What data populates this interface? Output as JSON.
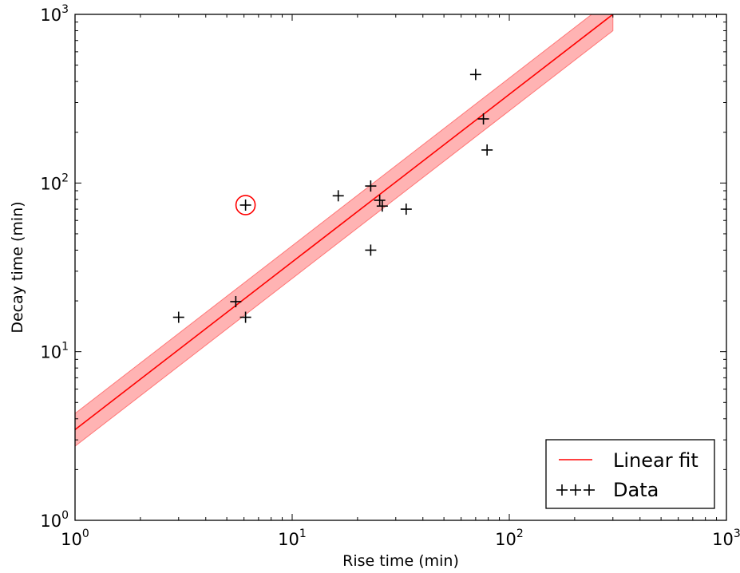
{
  "chart_data": {
    "type": "scatter",
    "title": "",
    "xlabel": "Rise time (min)",
    "ylabel": "Decay time (min)",
    "xscale": "log",
    "yscale": "log",
    "xlim": [
      1,
      1000
    ],
    "ylim": [
      1,
      1000
    ],
    "x_ticks": [
      {
        "value": 1,
        "base": "10",
        "exp": "0"
      },
      {
        "value": 10,
        "base": "10",
        "exp": "1"
      },
      {
        "value": 100,
        "base": "10",
        "exp": "2"
      },
      {
        "value": 1000,
        "base": "10",
        "exp": "3"
      }
    ],
    "y_ticks": [
      {
        "value": 1,
        "base": "10",
        "exp": "0"
      },
      {
        "value": 10,
        "base": "10",
        "exp": "1"
      },
      {
        "value": 100,
        "base": "10",
        "exp": "2"
      },
      {
        "value": 1000,
        "base": "10",
        "exp": "3"
      }
    ],
    "grid": false,
    "legend_position": "bottom-right",
    "series": [
      {
        "name": "Data",
        "kind": "scatter",
        "marker": "+",
        "color": "#000000",
        "points": [
          [
            3.0,
            16.0
          ],
          [
            5.5,
            19.8
          ],
          [
            6.1,
            16.0
          ],
          [
            6.1,
            74.0
          ],
          [
            16.3,
            84.0
          ],
          [
            23.0,
            96.0
          ],
          [
            23.0,
            40.0
          ],
          [
            25.3,
            79.0
          ],
          [
            26.0,
            73.0
          ],
          [
            33.5,
            70.0
          ],
          [
            70.0,
            440.0
          ],
          [
            76.0,
            240.0
          ],
          [
            79.0,
            157.0
          ]
        ]
      },
      {
        "name": "Linear fit",
        "kind": "line",
        "color": "#ff0000",
        "x": [
          1,
          300
        ],
        "y": [
          3.45,
          1000
        ],
        "band_lower": [
          2.75,
          800
        ],
        "band_upper": [
          4.3,
          1250
        ],
        "band_color": "#ff9999"
      }
    ],
    "highlighted_point": {
      "x": 6.1,
      "y": 74.0,
      "color": "#ff0000"
    }
  }
}
